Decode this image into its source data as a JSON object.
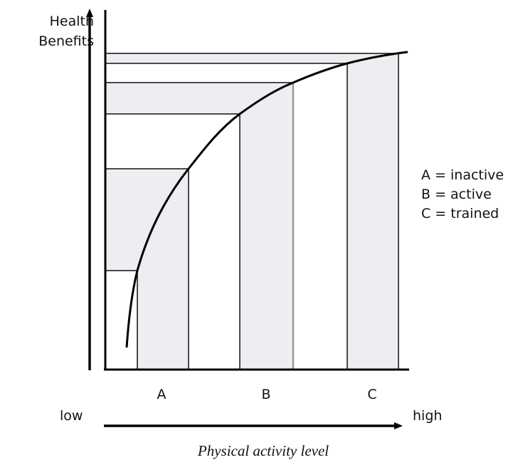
{
  "y_axis": {
    "label_lines": [
      "Health",
      "Benefits"
    ]
  },
  "x_axis": {
    "categories": [
      "A",
      "B",
      "C"
    ],
    "low": "low",
    "high": "high",
    "title": "Physical activity level"
  },
  "legend": [
    "A = inactive",
    "B = active",
    "C = trained"
  ]
}
